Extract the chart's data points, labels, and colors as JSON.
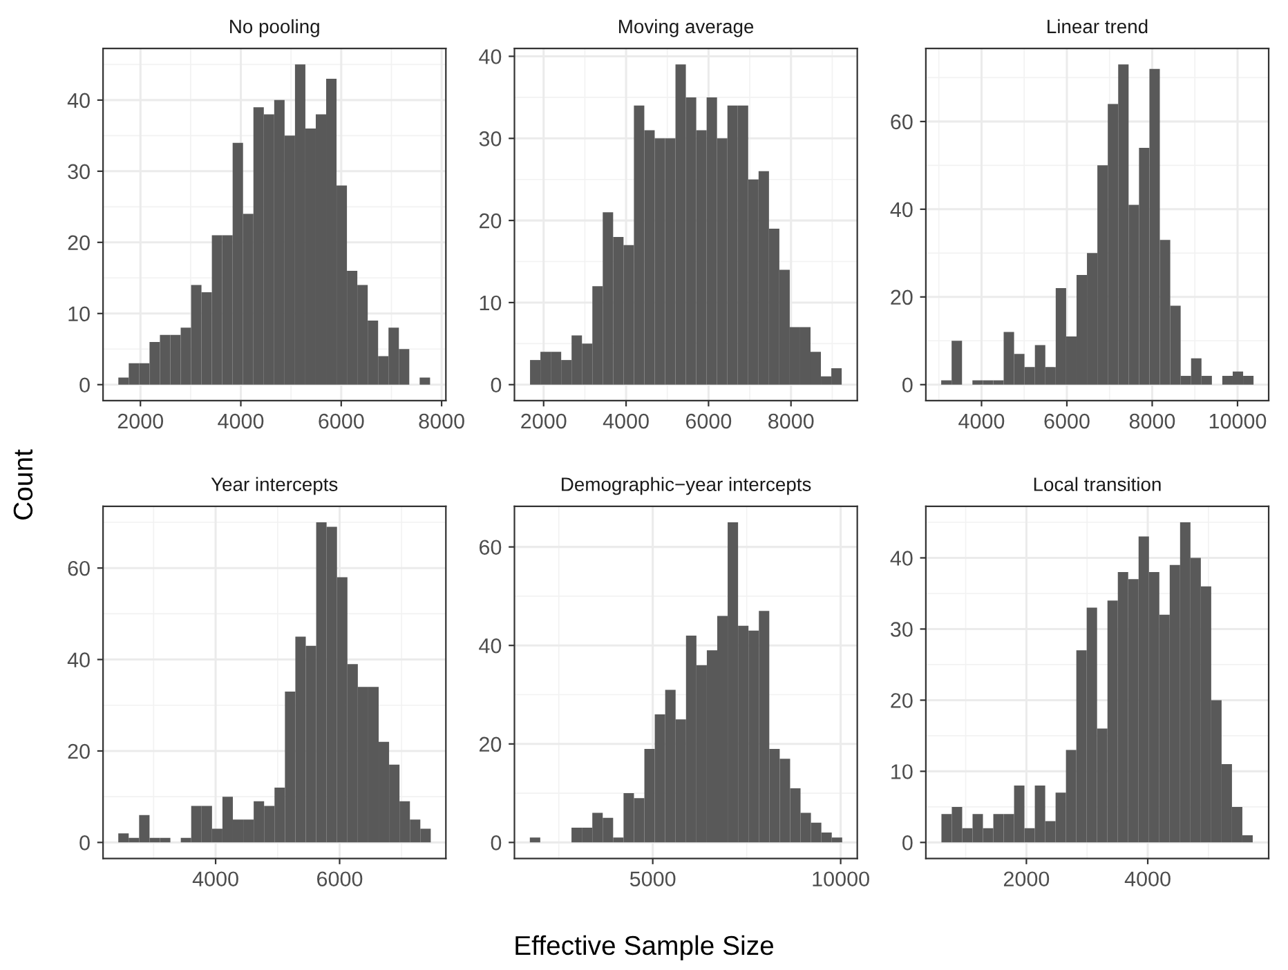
{
  "chart_data": [
    {
      "type": "histogram",
      "title": "No pooling",
      "ylabel": "Count",
      "color": "#595959",
      "grid": true,
      "bins": [
        1560,
        1767,
        1974,
        2181,
        2388,
        2595,
        2802,
        3009,
        3216,
        3423,
        3630,
        3837,
        4044,
        4251,
        4458,
        4665,
        4872,
        5079,
        5286,
        5493,
        5700,
        5907,
        6114,
        6321,
        6528,
        6735,
        6942,
        7149,
        7356,
        7563,
        7770
      ],
      "values": [
        1,
        3,
        3,
        6,
        7,
        7,
        8,
        14,
        13,
        21,
        21,
        34,
        24,
        39,
        38,
        40,
        35,
        45,
        36,
        38,
        43,
        28,
        16,
        14,
        9,
        4,
        8,
        5,
        0,
        1
      ],
      "xlim": [
        1255,
        8085
      ],
      "ylim": [
        -2.25,
        47.25
      ],
      "xticks": [
        2000,
        4000,
        6000,
        8000
      ],
      "yticks": [
        0,
        10,
        20,
        30,
        40
      ]
    },
    {
      "type": "histogram",
      "title": "Moving average",
      "color": "#595959",
      "grid": true,
      "bins": [
        1670,
        1922,
        2174,
        2426,
        2678,
        2930,
        3182,
        3434,
        3686,
        3938,
        4190,
        4442,
        4694,
        4946,
        5198,
        5450,
        5702,
        5954,
        6206,
        6458,
        6710,
        6962,
        7214,
        7466,
        7718,
        7970,
        8222,
        8474,
        8726,
        8978,
        9230
      ],
      "values": [
        3,
        4,
        4,
        3,
        6,
        5,
        12,
        21,
        18,
        17,
        34,
        31,
        30,
        30,
        39,
        35,
        31,
        35,
        30,
        34,
        34,
        25,
        26,
        19,
        14,
        7,
        7,
        4,
        1,
        2
      ],
      "xlim": [
        1292,
        9608
      ],
      "ylim": [
        -1.95,
        40.95
      ],
      "xticks": [
        2000,
        4000,
        6000,
        8000
      ],
      "yticks": [
        0,
        10,
        20,
        30,
        40
      ]
    },
    {
      "type": "histogram",
      "title": "Linear trend",
      "color": "#595959",
      "grid": true,
      "bins": [
        3055,
        3299,
        3543,
        3787,
        4031,
        4275,
        4519,
        4763,
        5007,
        5251,
        5495,
        5739,
        5983,
        6227,
        6471,
        6715,
        6959,
        7203,
        7447,
        7691,
        7935,
        8179,
        8423,
        8667,
        8911,
        9155,
        9399,
        9643,
        9887,
        10131,
        10375
      ],
      "values": [
        1,
        10,
        0,
        1,
        1,
        1,
        12,
        7,
        4,
        9,
        4,
        22,
        11,
        25,
        30,
        50,
        64,
        73,
        41,
        54,
        72,
        33,
        18,
        2,
        6,
        2,
        0,
        2,
        3,
        2
      ],
      "xlim": [
        2695,
        10730
      ],
      "ylim": [
        -3.65,
        76.65
      ],
      "xticks": [
        4000,
        6000,
        8000,
        10000
      ],
      "yticks": [
        0,
        20,
        40,
        60
      ]
    },
    {
      "type": "histogram",
      "title": "Year intercepts",
      "color": "#595959",
      "grid": true,
      "bins": [
        2430,
        2598,
        2766,
        2934,
        3102,
        3270,
        3438,
        3606,
        3774,
        3942,
        4110,
        4278,
        4446,
        4614,
        4782,
        4950,
        5118,
        5286,
        5454,
        5622,
        5790,
        5958,
        6126,
        6294,
        6462,
        6630,
        6798,
        6966,
        7134,
        7302,
        7470
      ],
      "values": [
        2,
        1,
        6,
        1,
        1,
        0,
        1,
        8,
        8,
        3,
        10,
        5,
        5,
        9,
        8,
        12,
        33,
        45,
        43,
        70,
        69,
        58,
        39,
        34,
        34,
        22,
        17,
        9,
        5,
        3
      ],
      "xlim": [
        2184,
        7714
      ],
      "ylim": [
        -3.5,
        73.5
      ],
      "xticks": [
        4000,
        6000
      ],
      "yticks": [
        0,
        20,
        40,
        60
      ]
    },
    {
      "type": "histogram",
      "title": "Demographic−year intercepts",
      "xlabel": "Effective Sample Size",
      "color": "#595959",
      "grid": true,
      "bins": [
        1730,
        2007,
        2284,
        2561,
        2838,
        3115,
        3392,
        3669,
        3946,
        4223,
        4500,
        4777,
        5054,
        5331,
        5608,
        5885,
        6162,
        6439,
        6716,
        6993,
        7270,
        7547,
        7824,
        8101,
        8378,
        8655,
        8932,
        9209,
        9486,
        9763,
        10040
      ],
      "values": [
        1,
        0,
        0,
        0,
        3,
        3,
        6,
        5,
        1,
        10,
        9,
        19,
        26,
        31,
        25,
        42,
        36,
        39,
        46,
        65,
        44,
        43,
        47,
        19,
        17,
        11,
        6,
        4,
        2,
        1
      ],
      "xlim": [
        1320,
        10442
      ],
      "ylim": [
        -3.25,
        68.25
      ],
      "xticks": [
        5000,
        10000
      ],
      "yticks": [
        0,
        20,
        40,
        60
      ]
    },
    {
      "type": "histogram",
      "title": "Local transition",
      "color": "#595959",
      "grid": true,
      "bins": [
        600,
        771,
        942,
        1113,
        1284,
        1455,
        1626,
        1797,
        1968,
        2139,
        2310,
        2481,
        2652,
        2823,
        2994,
        3165,
        3336,
        3507,
        3678,
        3849,
        4020,
        4191,
        4362,
        4533,
        4704,
        4875,
        5046,
        5217,
        5388,
        5559,
        5730
      ],
      "values": [
        4,
        5,
        2,
        4,
        2,
        4,
        4,
        8,
        2,
        8,
        3,
        7,
        13,
        27,
        33,
        16,
        34,
        38,
        37,
        43,
        38,
        32,
        39,
        45,
        40,
        36,
        20,
        11,
        5,
        1
      ],
      "xlim": [
        343,
        5993
      ],
      "ylim": [
        -2.25,
        47.25
      ],
      "xticks": [
        2000,
        4000
      ],
      "yticks": [
        0,
        10,
        20,
        30,
        40
      ]
    }
  ]
}
